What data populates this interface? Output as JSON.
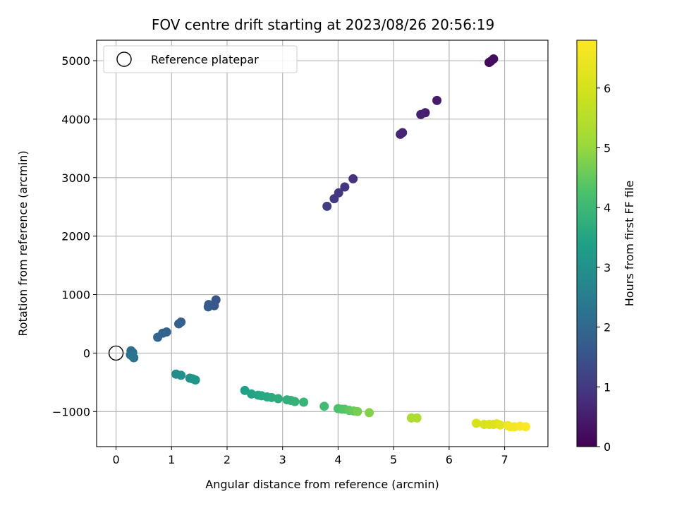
{
  "chart_data": {
    "type": "scatter",
    "title": "FOV centre drift starting at 2023/08/26 20:56:19",
    "xlabel": "Angular distance from reference (arcmin)",
    "ylabel": "Rotation from reference (arcmin)",
    "xlim": [
      -0.35,
      7.78
    ],
    "ylim": [
      -1600,
      5350
    ],
    "xticks": [
      0,
      1,
      2,
      3,
      4,
      5,
      6,
      7
    ],
    "yticks": [
      -1000,
      0,
      1000,
      2000,
      3000,
      4000,
      5000
    ],
    "ytick_labels": [
      "−1000",
      "0",
      "1000",
      "2000",
      "3000",
      "4000",
      "5000"
    ],
    "grid": true,
    "legend": {
      "placement": "top-left",
      "entries": [
        "Reference platepar"
      ]
    },
    "reference_point": {
      "x": 0,
      "y": 0,
      "label": "Reference platepar"
    },
    "colorbar": {
      "label": "Hours from first FF file",
      "range": [
        0,
        6.8
      ],
      "ticks": [
        0,
        1,
        2,
        3,
        4,
        5,
        6
      ],
      "colormap": "viridis"
    },
    "points": [
      {
        "x": 6.72,
        "y": 4970,
        "h": 0.1
      },
      {
        "x": 6.75,
        "y": 4990,
        "h": 0.15
      },
      {
        "x": 6.8,
        "y": 5030,
        "h": 0.2
      },
      {
        "x": 5.78,
        "y": 4320,
        "h": 0.45
      },
      {
        "x": 5.57,
        "y": 4110,
        "h": 0.5
      },
      {
        "x": 5.49,
        "y": 4080,
        "h": 0.55
      },
      {
        "x": 5.16,
        "y": 3770,
        "h": 0.6
      },
      {
        "x": 5.12,
        "y": 3740,
        "h": 0.65
      },
      {
        "x": 4.27,
        "y": 2980,
        "h": 0.85
      },
      {
        "x": 4.12,
        "y": 2840,
        "h": 0.9
      },
      {
        "x": 4.01,
        "y": 2740,
        "h": 0.95
      },
      {
        "x": 3.93,
        "y": 2640,
        "h": 1.0
      },
      {
        "x": 3.8,
        "y": 2510,
        "h": 1.05
      },
      {
        "x": 1.8,
        "y": 910,
        "h": 1.55
      },
      {
        "x": 1.77,
        "y": 810,
        "h": 1.6
      },
      {
        "x": 1.67,
        "y": 830,
        "h": 1.65
      },
      {
        "x": 1.66,
        "y": 790,
        "h": 1.7
      },
      {
        "x": 1.17,
        "y": 530,
        "h": 1.75
      },
      {
        "x": 1.13,
        "y": 500,
        "h": 1.8
      },
      {
        "x": 0.91,
        "y": 360,
        "h": 1.85
      },
      {
        "x": 0.84,
        "y": 340,
        "h": 1.9
      },
      {
        "x": 0.75,
        "y": 270,
        "h": 1.95
      },
      {
        "x": 0.27,
        "y": 40,
        "h": 2.1
      },
      {
        "x": 0.3,
        "y": 10,
        "h": 2.15
      },
      {
        "x": 0.26,
        "y": -30,
        "h": 2.2
      },
      {
        "x": 0.32,
        "y": -80,
        "h": 2.25
      },
      {
        "x": 0.29,
        "y": -50,
        "h": 2.3
      },
      {
        "x": 1.08,
        "y": -360,
        "h": 2.9
      },
      {
        "x": 1.17,
        "y": -380,
        "h": 2.95
      },
      {
        "x": 1.33,
        "y": -430,
        "h": 3.0
      },
      {
        "x": 1.38,
        "y": -440,
        "h": 3.05
      },
      {
        "x": 1.43,
        "y": -460,
        "h": 3.1
      },
      {
        "x": 2.32,
        "y": -640,
        "h": 3.4
      },
      {
        "x": 2.44,
        "y": -700,
        "h": 3.45
      },
      {
        "x": 2.56,
        "y": -720,
        "h": 3.5
      },
      {
        "x": 2.62,
        "y": -730,
        "h": 3.55
      },
      {
        "x": 2.72,
        "y": -750,
        "h": 3.6
      },
      {
        "x": 2.8,
        "y": -760,
        "h": 3.65
      },
      {
        "x": 2.92,
        "y": -780,
        "h": 3.7
      },
      {
        "x": 3.08,
        "y": -800,
        "h": 3.75
      },
      {
        "x": 3.15,
        "y": -810,
        "h": 3.8
      },
      {
        "x": 3.22,
        "y": -830,
        "h": 3.85
      },
      {
        "x": 3.38,
        "y": -840,
        "h": 3.9
      },
      {
        "x": 3.75,
        "y": -910,
        "h": 4.1
      },
      {
        "x": 4.0,
        "y": -950,
        "h": 4.25
      },
      {
        "x": 4.07,
        "y": -960,
        "h": 4.3
      },
      {
        "x": 4.12,
        "y": -960,
        "h": 4.35
      },
      {
        "x": 4.2,
        "y": -980,
        "h": 4.45
      },
      {
        "x": 4.28,
        "y": -990,
        "h": 4.55
      },
      {
        "x": 4.35,
        "y": -1000,
        "h": 4.7
      },
      {
        "x": 4.56,
        "y": -1020,
        "h": 4.8
      },
      {
        "x": 5.32,
        "y": -1110,
        "h": 5.3
      },
      {
        "x": 5.42,
        "y": -1110,
        "h": 5.35
      },
      {
        "x": 6.49,
        "y": -1200,
        "h": 6.0
      },
      {
        "x": 6.63,
        "y": -1220,
        "h": 6.05
      },
      {
        "x": 6.72,
        "y": -1220,
        "h": 6.1
      },
      {
        "x": 6.8,
        "y": -1220,
        "h": 6.15
      },
      {
        "x": 6.86,
        "y": -1210,
        "h": 6.2
      },
      {
        "x": 6.92,
        "y": -1230,
        "h": 6.25
      },
      {
        "x": 7.06,
        "y": -1240,
        "h": 6.55
      },
      {
        "x": 7.1,
        "y": -1260,
        "h": 6.6
      },
      {
        "x": 7.18,
        "y": -1260,
        "h": 6.65
      },
      {
        "x": 7.28,
        "y": -1250,
        "h": 6.7
      },
      {
        "x": 7.38,
        "y": -1260,
        "h": 6.8
      }
    ]
  }
}
